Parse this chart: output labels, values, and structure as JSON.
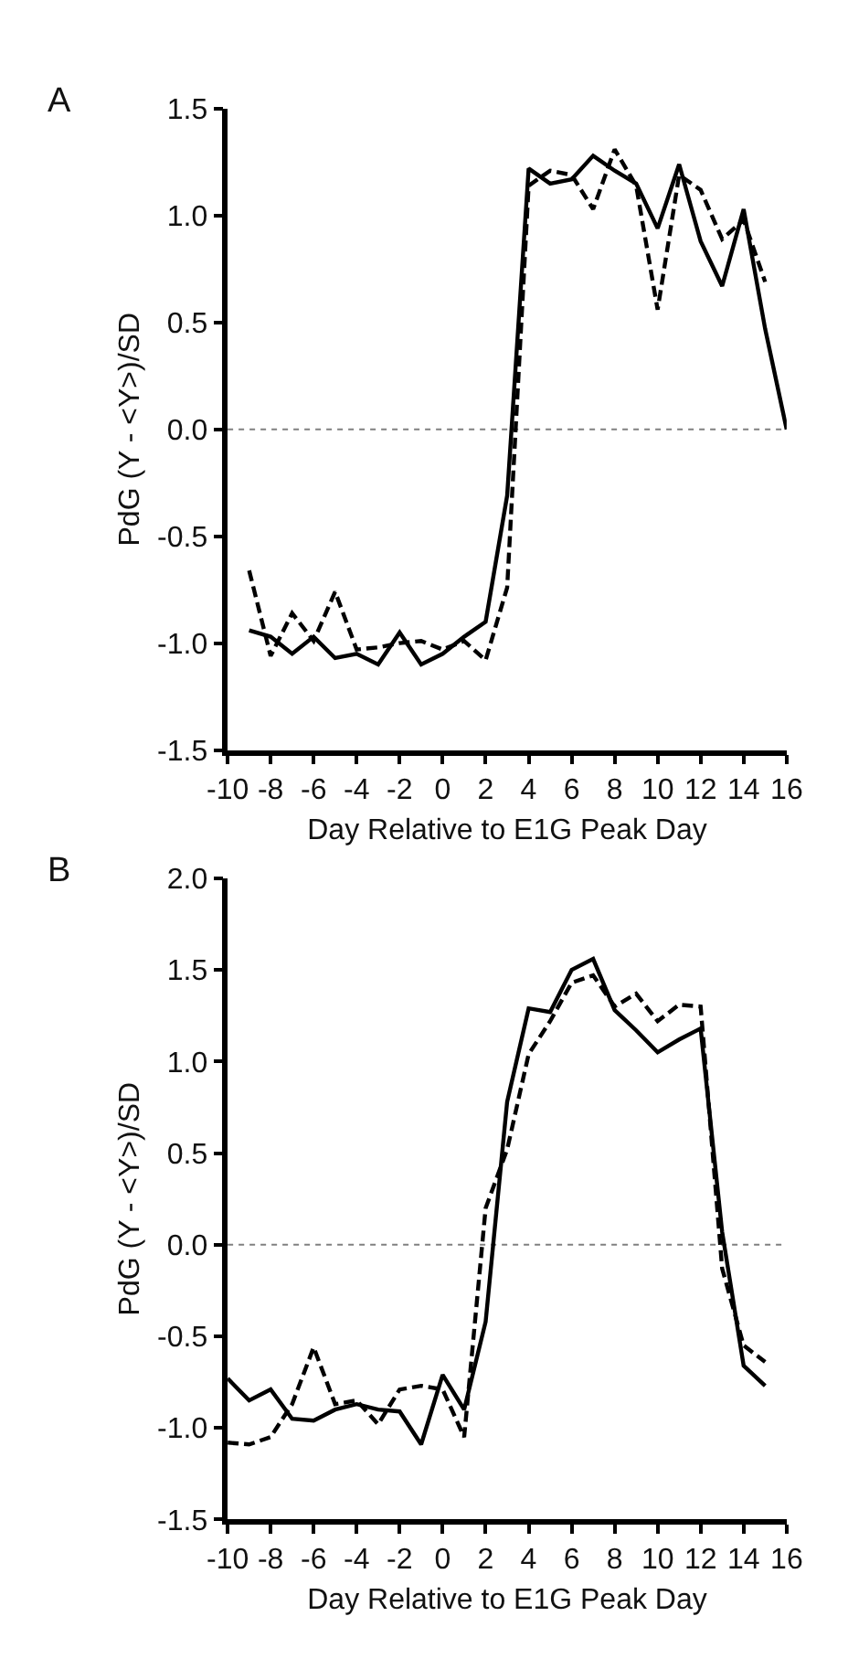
{
  "chart_data": [
    {
      "type": "line",
      "title": "A",
      "xlabel": "Day Relative to E1G Peak Day",
      "ylabel": "PdG (Y - <Y>)/SD",
      "xlim": [
        -10,
        16
      ],
      "ylim": [
        -1.5,
        1.5
      ],
      "xticks": [
        -10,
        -8,
        -6,
        -4,
        -2,
        0,
        2,
        4,
        6,
        8,
        10,
        12,
        14,
        16
      ],
      "yticks": [
        {
          "value": -1.5,
          "label": "-1.5"
        },
        {
          "value": -1,
          "label": "-1.0"
        },
        {
          "value": -0.5,
          "label": "-0.5"
        },
        {
          "value": 0,
          "label": "0.0"
        },
        {
          "value": 0.5,
          "label": "0.5"
        },
        {
          "value": 1,
          "label": "1.0"
        },
        {
          "value": 1.5,
          "label": "1.5"
        }
      ],
      "grid": false,
      "marker": "none",
      "ref_lines": [
        {
          "axis": "y",
          "value": 0,
          "color": "#808080",
          "line_style": "dotted"
        }
      ],
      "series": [
        {
          "color": "#000000",
          "line_style": "solid",
          "x": [
            -9,
            -8,
            -7,
            -6,
            -5,
            -4,
            -3,
            -2,
            -1,
            0,
            1,
            2,
            3,
            4,
            5,
            6,
            7,
            8,
            9,
            10,
            11,
            12,
            13,
            14,
            15,
            16
          ],
          "values": [
            -0.94,
            -0.97,
            -1.05,
            -0.97,
            -1.07,
            -1.05,
            -1.1,
            -0.95,
            -1.1,
            -1.05,
            -0.97,
            -0.9,
            -0.31,
            1.22,
            1.15,
            1.17,
            1.28,
            1.21,
            1.15,
            0.94,
            1.24,
            0.88,
            0.67,
            1.03,
            0.47,
            0.0
          ]
        },
        {
          "color": "#000000",
          "line_style": "dashed",
          "x": [
            -9,
            -8,
            -7,
            -6,
            -5,
            -4,
            -3,
            -2,
            -1,
            0,
            1,
            2,
            3,
            4,
            5,
            6,
            7,
            8,
            9,
            10,
            11,
            12,
            13,
            14,
            15
          ],
          "values": [
            -0.66,
            -1.06,
            -0.86,
            -0.99,
            -0.76,
            -1.03,
            -1.02,
            -1.0,
            -0.99,
            -1.03,
            -0.99,
            -1.08,
            -0.74,
            1.14,
            1.21,
            1.19,
            1.03,
            1.31,
            1.14,
            0.56,
            1.19,
            1.12,
            0.89,
            0.98,
            0.69
          ]
        }
      ]
    },
    {
      "type": "line",
      "title": "B",
      "xlabel": "Day Relative to E1G Peak Day",
      "ylabel": "PdG (Y - <Y>)/SD",
      "xlim": [
        -10,
        16
      ],
      "ylim": [
        -1.5,
        2.0
      ],
      "xticks": [
        -10,
        -8,
        -6,
        -4,
        -2,
        0,
        2,
        4,
        6,
        8,
        10,
        12,
        14,
        16
      ],
      "yticks": [
        {
          "value": -1.5,
          "label": "-1.5"
        },
        {
          "value": -1,
          "label": "-1.0"
        },
        {
          "value": -0.5,
          "label": "-0.5"
        },
        {
          "value": 0,
          "label": "0.0"
        },
        {
          "value": 0.5,
          "label": "0.5"
        },
        {
          "value": 1,
          "label": "1.0"
        },
        {
          "value": 1.5,
          "label": "1.5"
        },
        {
          "value": 2,
          "label": "2.0"
        }
      ],
      "grid": false,
      "marker": "none",
      "ref_lines": [
        {
          "axis": "y",
          "value": 0,
          "color": "#808080",
          "line_style": "dotted"
        }
      ],
      "series": [
        {
          "color": "#000000",
          "line_style": "solid",
          "x": [
            -10,
            -9,
            -8,
            -7,
            -6,
            -5,
            -4,
            -3,
            -2,
            -1,
            0,
            1,
            2,
            3,
            4,
            5,
            6,
            7,
            8,
            9,
            10,
            11,
            12,
            13,
            14,
            15
          ],
          "values": [
            -0.73,
            -0.85,
            -0.79,
            -0.95,
            -0.96,
            -0.9,
            -0.87,
            -0.9,
            -0.91,
            -1.09,
            -0.71,
            -0.9,
            -0.42,
            0.78,
            1.29,
            1.27,
            1.5,
            1.56,
            1.28,
            1.17,
            1.05,
            1.12,
            1.18,
            0.07,
            -0.66,
            -0.77
          ]
        },
        {
          "color": "#000000",
          "line_style": "dashed",
          "x": [
            -10,
            -9,
            -8,
            -7,
            -6,
            -5,
            -4,
            -3,
            -2,
            -1,
            0,
            1,
            2,
            3,
            4,
            5,
            6,
            7,
            8,
            9,
            10,
            11,
            12,
            13,
            14,
            15
          ],
          "values": [
            -1.08,
            -1.09,
            -1.05,
            -0.87,
            -0.56,
            -0.87,
            -0.85,
            -0.98,
            -0.79,
            -0.77,
            -0.79,
            -1.05,
            0.2,
            0.52,
            1.04,
            1.22,
            1.43,
            1.47,
            1.3,
            1.37,
            1.22,
            1.31,
            1.3,
            -0.13,
            -0.55,
            -0.64
          ]
        }
      ]
    }
  ]
}
